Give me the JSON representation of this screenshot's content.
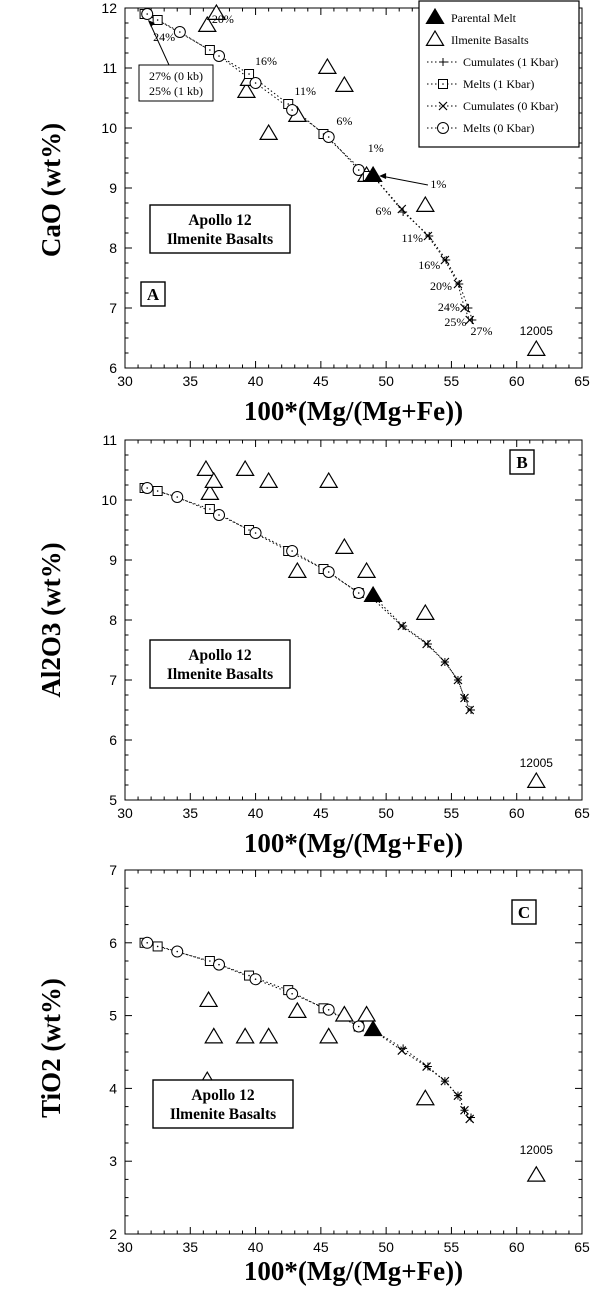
{
  "legend": {
    "items": [
      {
        "key": "parental",
        "label": "Parental Melt",
        "symbol": "filled-triangle-icon"
      },
      {
        "key": "ilmenite",
        "label": "Ilmenite Basalts",
        "symbol": "open-triangle-icon"
      },
      {
        "key": "cum1",
        "label": "Cumulates (1 Kbar)",
        "symbol": "plus-icon"
      },
      {
        "key": "melt1",
        "label": "Melts (1 Kbar)",
        "symbol": "square-icon"
      },
      {
        "key": "cum0",
        "label": "Cumulates (0 Kbar)",
        "symbol": "cross-icon"
      },
      {
        "key": "melt0",
        "label": "Melts (0 Kbar)",
        "symbol": "circle-icon"
      }
    ]
  },
  "chart_data": [
    {
      "type": "scatter",
      "panel": "A",
      "xlabel": "100*(Mg/(Mg+Fe))",
      "ylabel": "CaO (wt%)",
      "xlim": [
        30,
        65
      ],
      "ylim": [
        6,
        12
      ],
      "xticks": [
        "30",
        "35",
        "40",
        "45",
        "50",
        "55",
        "60",
        "65"
      ],
      "yticks": [
        "6",
        "7",
        "8",
        "9",
        "10",
        "11",
        "12"
      ],
      "box_lines": [
        "Apollo 12",
        "Ilmenite Basalts"
      ],
      "sample_label": {
        "text": "12005",
        "x": 61.5,
        "y": 6.55
      },
      "series": {
        "ilmenite": [
          [
            36.3,
            11.7
          ],
          [
            37.0,
            11.9
          ],
          [
            39.3,
            10.6
          ],
          [
            39.5,
            10.8
          ],
          [
            41.0,
            9.9
          ],
          [
            43.2,
            10.2
          ],
          [
            45.5,
            11.0
          ],
          [
            46.8,
            10.7
          ],
          [
            48.5,
            9.2
          ],
          [
            53.0,
            8.7
          ],
          [
            61.5,
            6.3
          ]
        ],
        "parental": [
          [
            49.0,
            9.2
          ]
        ],
        "melt1": [
          [
            31.5,
            11.9
          ],
          [
            32.5,
            11.8
          ],
          [
            36.5,
            11.3
          ],
          [
            39.5,
            10.9
          ],
          [
            42.5,
            10.4
          ],
          [
            45.2,
            9.9
          ],
          [
            48.6,
            9.2
          ]
        ],
        "melt0": [
          [
            31.7,
            11.9
          ],
          [
            34.2,
            11.6
          ],
          [
            37.2,
            11.2
          ],
          [
            40.0,
            10.75
          ],
          [
            42.8,
            10.3
          ],
          [
            45.6,
            9.85
          ],
          [
            47.9,
            9.3
          ]
        ],
        "cum1": [
          [
            49.0,
            9.2
          ],
          [
            51.3,
            8.6
          ],
          [
            53.3,
            8.2
          ],
          [
            54.6,
            7.8
          ],
          [
            55.6,
            7.4
          ],
          [
            56.3,
            7.0
          ],
          [
            56.6,
            6.8
          ]
        ],
        "cum0": [
          [
            49.0,
            9.2
          ],
          [
            51.2,
            8.65
          ],
          [
            53.2,
            8.2
          ],
          [
            54.5,
            7.8
          ],
          [
            55.5,
            7.4
          ],
          [
            56.0,
            7.0
          ],
          [
            56.4,
            6.8
          ]
        ]
      },
      "annotations": [
        {
          "text": "24%",
          "x": 33.0,
          "y": 11.45
        },
        {
          "text": "20%",
          "x": 37.5,
          "y": 11.75
        },
        {
          "text": "16%",
          "x": 40.8,
          "y": 11.05
        },
        {
          "text": "11%",
          "x": 43.8,
          "y": 10.55
        },
        {
          "text": "6%",
          "x": 46.8,
          "y": 10.05
        },
        {
          "text": "1%",
          "x": 49.2,
          "y": 9.6
        },
        {
          "text": "1%",
          "x": 54.0,
          "y": 9.0
        },
        {
          "text": "6%",
          "x": 49.8,
          "y": 8.55
        },
        {
          "text": "11%",
          "x": 52.0,
          "y": 8.1
        },
        {
          "text": "16%",
          "x": 53.3,
          "y": 7.65
        },
        {
          "text": "20%",
          "x": 54.2,
          "y": 7.3
        },
        {
          "text": "24%",
          "x": 54.8,
          "y": 6.95
        },
        {
          "text": "25%",
          "x": 55.3,
          "y": 6.7
        },
        {
          "text": "27%",
          "x": 57.3,
          "y": 6.55
        }
      ],
      "callout_lines": [
        "27% (0 kb)",
        "25% (1 kb)"
      ]
    },
    {
      "type": "scatter",
      "panel": "B",
      "xlabel": "100*(Mg/(Mg+Fe))",
      "ylabel": "Al2O3 (wt%)",
      "xlim": [
        30,
        65
      ],
      "ylim": [
        5,
        11
      ],
      "xticks": [
        "30",
        "35",
        "40",
        "45",
        "50",
        "55",
        "60",
        "65"
      ],
      "yticks": [
        "5",
        "6",
        "7",
        "8",
        "9",
        "10",
        "11"
      ],
      "box_lines": [
        "Apollo 12",
        "Ilmenite Basalts"
      ],
      "sample_label": {
        "text": "12005",
        "x": 61.5,
        "y": 5.55
      },
      "series": {
        "ilmenite": [
          [
            36.2,
            10.5
          ],
          [
            36.5,
            10.1
          ],
          [
            36.8,
            10.3
          ],
          [
            39.2,
            10.5
          ],
          [
            41.0,
            10.3
          ],
          [
            45.6,
            10.3
          ],
          [
            43.2,
            8.8
          ],
          [
            46.8,
            9.2
          ],
          [
            48.5,
            8.8
          ],
          [
            53.0,
            8.1
          ],
          [
            61.5,
            5.3
          ]
        ],
        "parental": [
          [
            49.0,
            8.4
          ]
        ],
        "melt1": [
          [
            31.5,
            10.2
          ],
          [
            32.5,
            10.15
          ],
          [
            36.5,
            9.85
          ],
          [
            39.5,
            9.5
          ],
          [
            42.5,
            9.15
          ],
          [
            45.2,
            8.85
          ],
          [
            47.9,
            8.45
          ]
        ],
        "melt0": [
          [
            31.7,
            10.2
          ],
          [
            34.0,
            10.05
          ],
          [
            37.2,
            9.75
          ],
          [
            40.0,
            9.45
          ],
          [
            42.8,
            9.15
          ],
          [
            45.6,
            8.8
          ],
          [
            47.9,
            8.45
          ]
        ],
        "cum1": [
          [
            49.0,
            8.4
          ],
          [
            51.3,
            7.9
          ],
          [
            53.2,
            7.6
          ],
          [
            54.5,
            7.3
          ],
          [
            55.5,
            7.0
          ],
          [
            56.0,
            6.7
          ],
          [
            56.5,
            6.5
          ]
        ],
        "cum0": [
          [
            49.0,
            8.35
          ],
          [
            51.2,
            7.9
          ],
          [
            53.1,
            7.6
          ],
          [
            54.5,
            7.3
          ],
          [
            55.5,
            7.0
          ],
          [
            56.0,
            6.7
          ],
          [
            56.4,
            6.5
          ]
        ]
      }
    },
    {
      "type": "scatter",
      "panel": "C",
      "xlabel": "100*(Mg/(Mg+Fe))",
      "ylabel": "TiO2 (wt%)",
      "xlim": [
        30,
        65
      ],
      "ylim": [
        2,
        7
      ],
      "xticks": [
        "30",
        "35",
        "40",
        "45",
        "50",
        "55",
        "60",
        "65"
      ],
      "yticks": [
        "2",
        "3",
        "4",
        "5",
        "6",
        "7"
      ],
      "box_lines": [
        "Apollo 12",
        "Ilmenite Basalts"
      ],
      "sample_label": {
        "text": "12005",
        "x": 61.5,
        "y": 3.1
      },
      "series": {
        "ilmenite": [
          [
            36.4,
            5.2
          ],
          [
            36.8,
            4.7
          ],
          [
            36.3,
            4.1
          ],
          [
            39.2,
            4.7
          ],
          [
            41.0,
            4.7
          ],
          [
            43.2,
            5.05
          ],
          [
            45.6,
            4.7
          ],
          [
            46.8,
            5.0
          ],
          [
            48.5,
            5.0
          ],
          [
            53.0,
            3.85
          ],
          [
            61.5,
            2.8
          ]
        ],
        "parental": [
          [
            49.0,
            4.8
          ]
        ],
        "melt1": [
          [
            31.5,
            6.0
          ],
          [
            32.5,
            5.95
          ],
          [
            36.5,
            5.75
          ],
          [
            39.5,
            5.55
          ],
          [
            42.5,
            5.35
          ],
          [
            45.2,
            5.1
          ],
          [
            47.9,
            4.85
          ]
        ],
        "melt0": [
          [
            31.7,
            6.0
          ],
          [
            34.0,
            5.88
          ],
          [
            37.2,
            5.7
          ],
          [
            40.0,
            5.5
          ],
          [
            42.8,
            5.3
          ],
          [
            45.6,
            5.08
          ],
          [
            47.9,
            4.85
          ]
        ],
        "cum1": [
          [
            49.0,
            4.8
          ],
          [
            51.3,
            4.55
          ],
          [
            53.2,
            4.3
          ],
          [
            54.5,
            4.1
          ],
          [
            55.5,
            3.9
          ],
          [
            56.0,
            3.7
          ],
          [
            56.5,
            3.6
          ]
        ],
        "cum0": [
          [
            49.0,
            4.8
          ],
          [
            51.2,
            4.52
          ],
          [
            53.1,
            4.3
          ],
          [
            54.5,
            4.1
          ],
          [
            55.5,
            3.9
          ],
          [
            56.0,
            3.7
          ],
          [
            56.4,
            3.58
          ]
        ]
      }
    }
  ]
}
